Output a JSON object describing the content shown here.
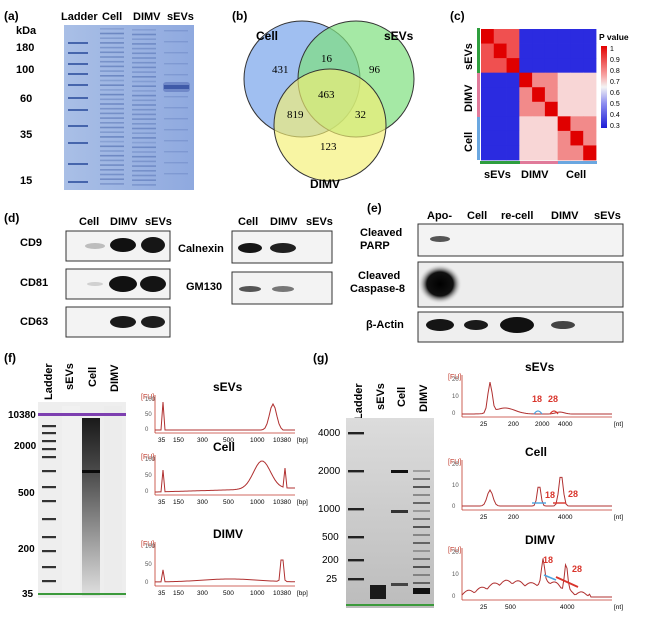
{
  "panel_a": {
    "label": "(a)",
    "kda": "kDa",
    "lanes": [
      "Ladder",
      "Cell",
      "DIMV",
      "sEVs"
    ],
    "markers": [
      "180",
      "100",
      "60",
      "35",
      "15"
    ]
  },
  "panel_b": {
    "label": "(b)",
    "sets": {
      "cell": "Cell",
      "sevs": "sEVs",
      "dimv": "DIMV"
    },
    "counts": {
      "cell_only": "431",
      "cell_sevs": "16",
      "sevs_only": "96",
      "all": "463",
      "cell_dimv": "819",
      "sevs_dimv": "32",
      "dimv_only": "123"
    },
    "colors": {
      "cell": "#8fb4ee",
      "sevs": "#7fe07f",
      "dimv": "#f5ef72"
    }
  },
  "panel_c": {
    "label": "(c)",
    "legend_title": "P value",
    "legend_ticks": [
      "1",
      "0.9",
      "0.8",
      "0.7",
      "0.6",
      "0.5",
      "0.4",
      "0.3"
    ],
    "row_labels": [
      "sEVs",
      "DIMV",
      "Cell"
    ],
    "col_labels": [
      "sEVs",
      "DIMV",
      "Cell"
    ],
    "group_colors": {
      "sevs": "#2e9e3e",
      "dimv": "#e07a9a",
      "cell": "#6aa7e0"
    }
  },
  "panel_d": {
    "label": "(d)",
    "lanes_left": [
      "Cell",
      "DIMV",
      "sEVs"
    ],
    "lanes_right": [
      "Cell",
      "DIMV",
      "sEVs"
    ],
    "blots_left": [
      "CD9",
      "CD81",
      "CD63"
    ],
    "blots_right": [
      "Calnexin",
      "GM130"
    ]
  },
  "panel_e": {
    "label": "(e)",
    "lanes": [
      "Apo-",
      "Cell",
      "re-cell",
      "DIMV",
      "sEVs"
    ],
    "rows": [
      "Cleaved\nPARP",
      "Cleaved\nCaspase-8",
      "β-Actin"
    ]
  },
  "panel_f": {
    "label": "(f)",
    "lanes": [
      "Ladder",
      "sEVs",
      "Cell",
      "DIMV"
    ],
    "gel_ticks": [
      "10380",
      "2000",
      "500",
      "200",
      "35"
    ],
    "traces": [
      "sEVs",
      "Cell",
      "DIMV"
    ],
    "fu": "[FU]",
    "unit": "[bp]",
    "y_ticks": [
      "0",
      "50",
      "100"
    ],
    "x_ticks": [
      "35",
      "150",
      "300",
      "500",
      "1000",
      "10380"
    ]
  },
  "panel_g": {
    "label": "(g)",
    "lanes": [
      "Ladder",
      "sEVs",
      "Cell",
      "DIMV"
    ],
    "gel_ticks": [
      "4000",
      "2000",
      "1000",
      "500",
      "200",
      "25"
    ],
    "traces": [
      "sEVs",
      "Cell",
      "DIMV"
    ],
    "fu": "[FU]",
    "unit": "[nt]",
    "peak_18": "18",
    "peak_28": "28",
    "x_ticks_sevs": [
      "25",
      "200",
      "2000",
      "4000"
    ],
    "x_ticks_cell": [
      "25",
      "200",
      "4000"
    ],
    "x_ticks_dimv": [
      "25",
      "500",
      "4000"
    ],
    "y_ticks": [
      "0",
      "10",
      "20"
    ]
  }
}
